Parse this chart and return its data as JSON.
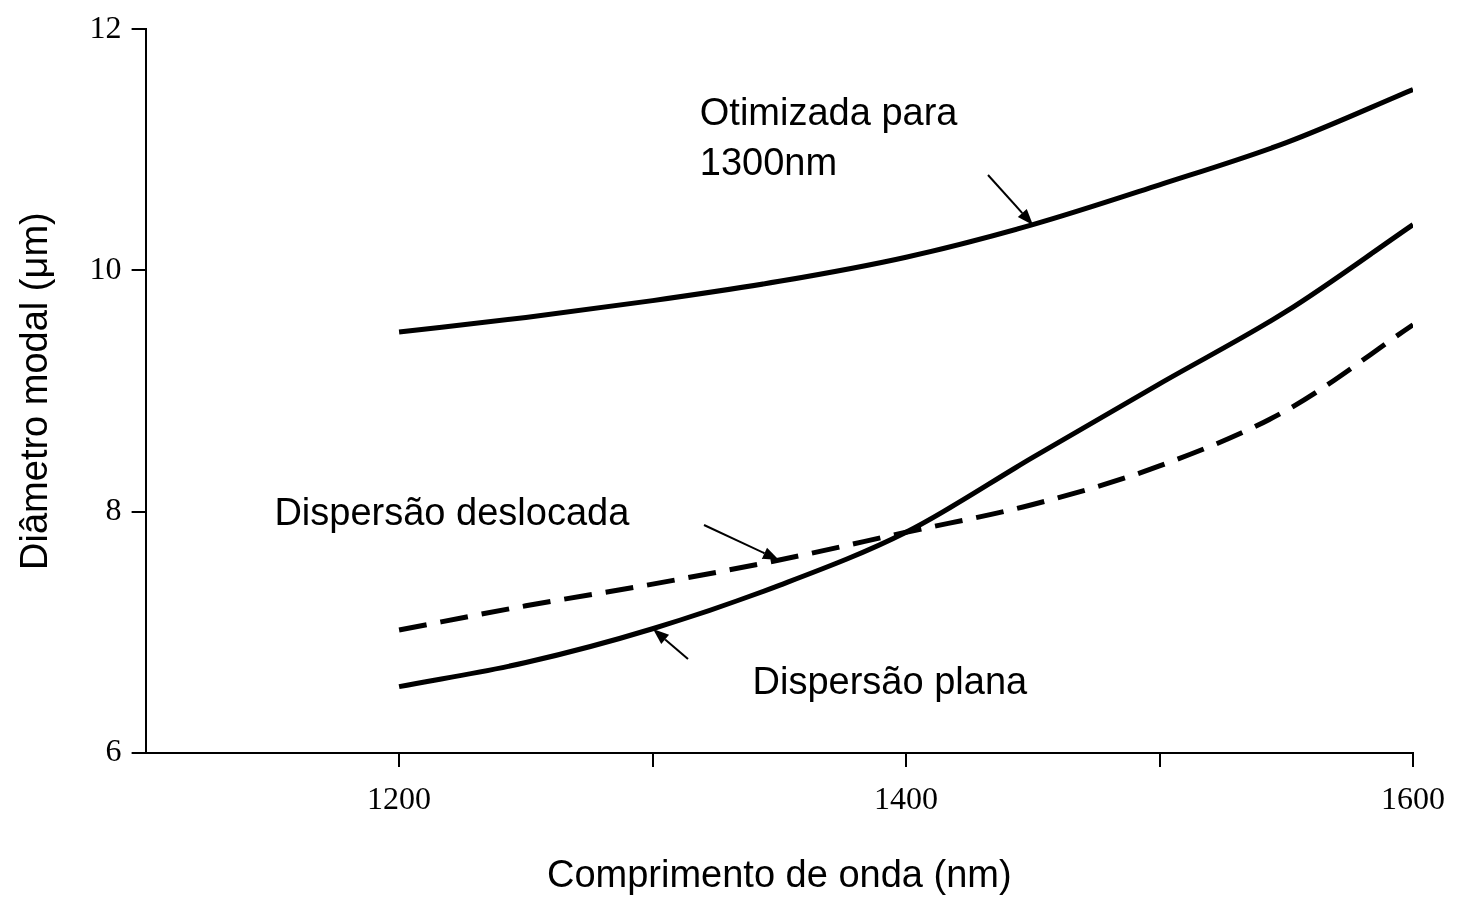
{
  "chart_data": {
    "type": "line",
    "xlabel": "Comprimento de onda (nm)",
    "ylabel": "Diâmetro modal (μm)",
    "x": [
      1200,
      1250,
      1300,
      1350,
      1400,
      1450,
      1500,
      1550,
      1600
    ],
    "xlim": [
      1100,
      1600
    ],
    "xticks": [
      1200,
      {
        "value": 1300,
        "label": null
      },
      1400,
      {
        "value": 1500,
        "label": null
      },
      1600
    ],
    "ylim": [
      6,
      12
    ],
    "yticks": [
      6,
      8,
      10,
      12
    ],
    "grid": false,
    "legend": false,
    "marker": "none",
    "series": [
      {
        "name": "Otimizada para 1300nm",
        "color": "#000000",
        "line_style": "solid",
        "values": [
          9.49,
          9.61,
          9.75,
          9.91,
          10.11,
          10.38,
          10.71,
          11.06,
          11.5
        ]
      },
      {
        "name": "Dispersão deslocada",
        "color": "#000000",
        "line_style": "dashed",
        "values": [
          7.02,
          7.22,
          7.4,
          7.6,
          7.83,
          8.06,
          8.38,
          8.84,
          9.55
        ]
      },
      {
        "name": "Dispersão plana",
        "color": "#000000",
        "line_style": "solid",
        "values": [
          6.55,
          6.75,
          7.03,
          7.39,
          7.83,
          8.45,
          9.06,
          9.66,
          10.38
        ]
      }
    ]
  }
}
